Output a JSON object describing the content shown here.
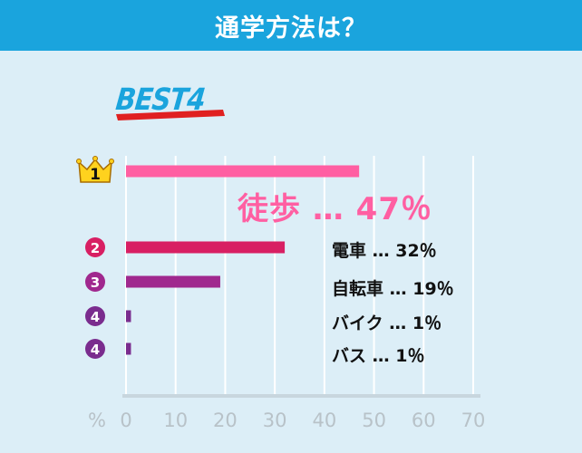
{
  "header": {
    "title": "通学方法は？"
  },
  "badge": {
    "text": "BEST4"
  },
  "chart_data": {
    "type": "bar",
    "orientation": "horizontal",
    "title": "通学方法は？",
    "xlabel": "%",
    "xlim": [
      0,
      70
    ],
    "xticks": [
      "0",
      "10",
      "20",
      "30",
      "40",
      "50",
      "60",
      "70"
    ],
    "grid": true,
    "categories": [
      "徒歩",
      "電車",
      "自転車",
      "バイク",
      "バス"
    ],
    "values": [
      47,
      32,
      19,
      1,
      1
    ],
    "ranks": [
      "1",
      "2",
      "3",
      "4",
      "4"
    ],
    "colors": [
      "#ff5fa2",
      "#d81f63",
      "#a0288e",
      "#7a2c8e",
      "#7a2c8e"
    ],
    "labels": [
      "徒歩 … 47％",
      "電車 … 32％",
      "自転車 … 19％",
      "バイク … 1％",
      "バス … 1％"
    ]
  }
}
